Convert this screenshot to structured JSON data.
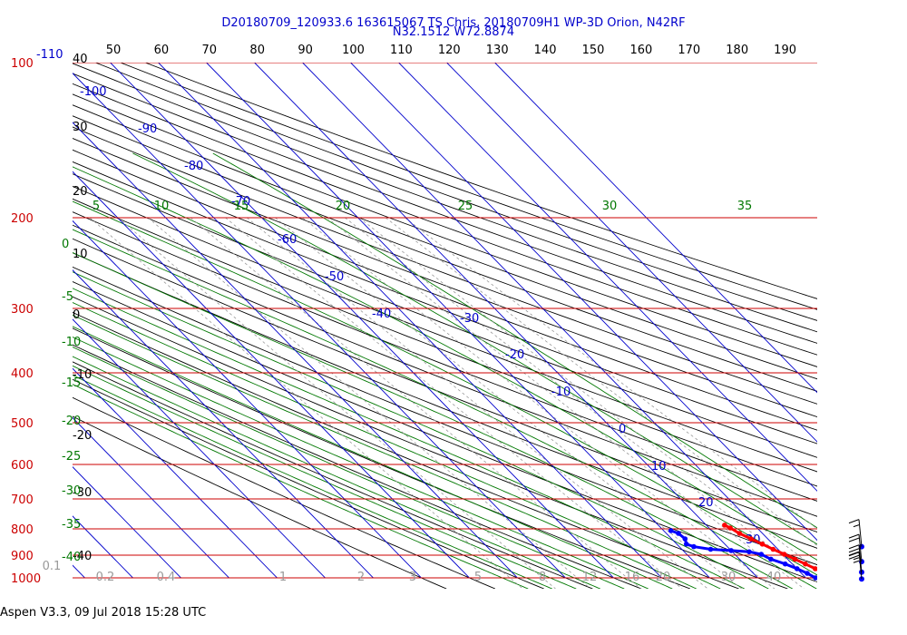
{
  "header": {
    "line1": "D20180709_120933.6 163615067 TS Chris, 20180709H1 WP-3D Orion, N42RF",
    "line2": "N32.1512 W72.8874"
  },
  "footer": {
    "text": "Aspen V3.3, 09 Jul 2018  15:28 UTC"
  },
  "colors": {
    "isobar": "#cc0000",
    "isotherm": "#0000cc",
    "dry_adiabat": "#000000",
    "moist_adiabat": "#007700",
    "mixing_ratio": "#999999",
    "temperature_trace": "#ff0000",
    "dewpoint_trace": "#0000ff",
    "title_text": "#0000cc"
  },
  "chart_data": {
    "type": "skew-t log-p",
    "pressure_labels": [
      "100",
      "200",
      "300",
      "400",
      "500",
      "600",
      "700",
      "800",
      "900",
      "1000"
    ],
    "isotherm_labels": [
      "-110",
      "-100",
      "-90",
      "-80",
      "-70",
      "-60",
      "-50",
      "-40",
      "-30",
      "-20",
      "-10",
      "0",
      "10",
      "20",
      "30"
    ],
    "top_theta_labels": [
      "50",
      "60",
      "70",
      "80",
      "90",
      "100",
      "110",
      "120",
      "130",
      "140",
      "150",
      "160",
      "170",
      "180",
      "190"
    ],
    "left_axis_labels": [
      "40",
      "30",
      "20",
      "10",
      "0",
      "-10",
      "-20",
      "-30",
      "-40"
    ],
    "green_top_labels": [
      "5",
      "10",
      "15",
      "20",
      "25",
      "30",
      "35"
    ],
    "green_left_labels": [
      "0",
      "-5",
      "-10",
      "-15",
      "-20",
      "-25",
      "-30",
      "-35",
      "-40"
    ],
    "mixing_ratio_labels": [
      "0.1",
      "0.2",
      "0.4",
      "1",
      "2",
      "3",
      "5",
      "8",
      "12",
      "16",
      "20",
      "30",
      "40"
    ],
    "temperature_profile": [
      {
        "p": 1012,
        "t": 27.0
      },
      {
        "p": 1000,
        "t": 26.2
      },
      {
        "p": 980,
        "t": 25.0
      },
      {
        "p": 960,
        "t": 23.8
      },
      {
        "p": 940,
        "t": 22.7
      },
      {
        "p": 920,
        "t": 21.5
      },
      {
        "p": 900,
        "t": 20.3
      },
      {
        "p": 880,
        "t": 19.0
      },
      {
        "p": 860,
        "t": 17.8
      },
      {
        "p": 840,
        "t": 16.5
      },
      {
        "p": 820,
        "t": 15.2
      },
      {
        "p": 800,
        "t": 14.4
      },
      {
        "p": 790,
        "t": 13.8
      }
    ],
    "dewpoint_profile": [
      {
        "p": 1012,
        "t": 23.0
      },
      {
        "p": 1000,
        "t": 22.0
      },
      {
        "p": 980,
        "t": 21.2
      },
      {
        "p": 960,
        "t": 20.0
      },
      {
        "p": 940,
        "t": 18.5
      },
      {
        "p": 920,
        "t": 16.5
      },
      {
        "p": 900,
        "t": 15.5
      },
      {
        "p": 890,
        "t": 13.5
      },
      {
        "p": 885,
        "t": 10.0
      },
      {
        "p": 880,
        "t": 6.0
      },
      {
        "p": 870,
        "t": 3.0
      },
      {
        "p": 860,
        "t": 2.0
      },
      {
        "p": 840,
        "t": 2.8
      },
      {
        "p": 820,
        "t": 2.5
      },
      {
        "p": 810,
        "t": 1.5
      }
    ],
    "wind_barbs": [
      {
        "p": 870,
        "flags": 0,
        "full": 1,
        "half": 1
      },
      {
        "p": 930,
        "flags": 0,
        "full": 2,
        "half": 0
      },
      {
        "p": 975,
        "flags": 0,
        "full": 3,
        "half": 1
      },
      {
        "p": 1005,
        "flags": 0,
        "full": 2,
        "half": 1
      }
    ]
  }
}
